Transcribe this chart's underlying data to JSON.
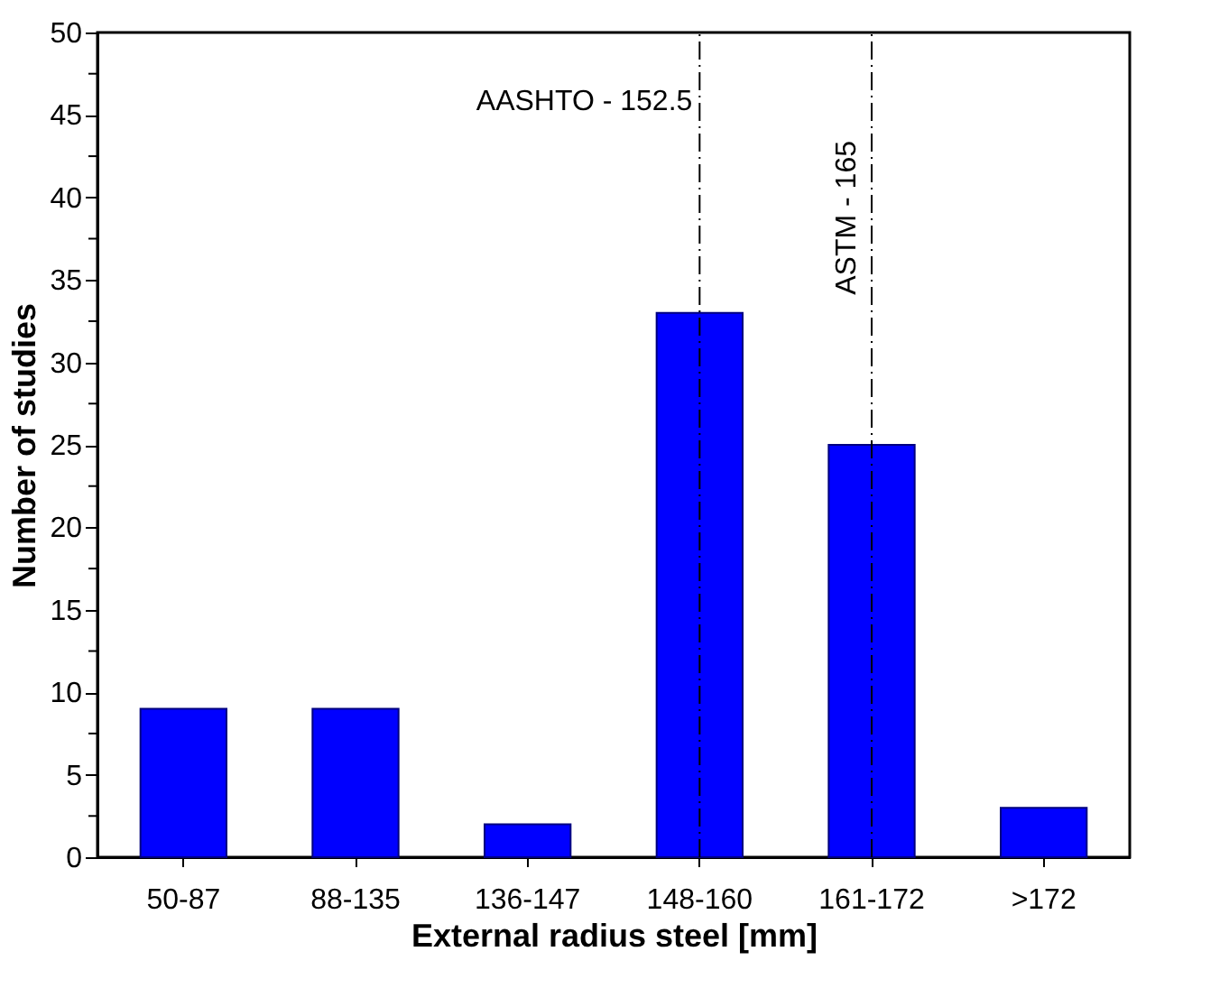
{
  "chart_data": {
    "type": "bar",
    "xlabel": "External radius steel [mm]",
    "ylabel": "Number of studies",
    "categories": [
      "50-87",
      "88-135",
      "136-147",
      "148-160",
      "161-172",
      ">172"
    ],
    "values": [
      9,
      9,
      2,
      33,
      25,
      3
    ],
    "color": "#0000ff",
    "ylim": [
      0,
      50
    ],
    "yticks": [
      0,
      {
        "value": 2.5,
        "label": null
      },
      5,
      {
        "value": 7.5,
        "label": null
      },
      10,
      {
        "value": 12.5,
        "label": null
      },
      15,
      {
        "value": 17.5,
        "label": null
      },
      20,
      {
        "value": 22.5,
        "label": null
      },
      25,
      {
        "value": 27.5,
        "label": null
      },
      30,
      {
        "value": 32.5,
        "label": null
      },
      35,
      {
        "value": 37.5,
        "label": null
      },
      40,
      {
        "value": 42.5,
        "label": null
      },
      45,
      {
        "value": 47.5,
        "label": null
      },
      50
    ],
    "grid": false,
    "ref_lines": [
      {
        "axis": "x",
        "value": "148-160",
        "label": "AASHTO - 152.5",
        "color": "#000000",
        "line_style": "dashdot"
      },
      {
        "axis": "x",
        "value": "161-172",
        "label": "ASTM - 165",
        "color": "#000000",
        "line_style": "dashdot"
      }
    ]
  }
}
